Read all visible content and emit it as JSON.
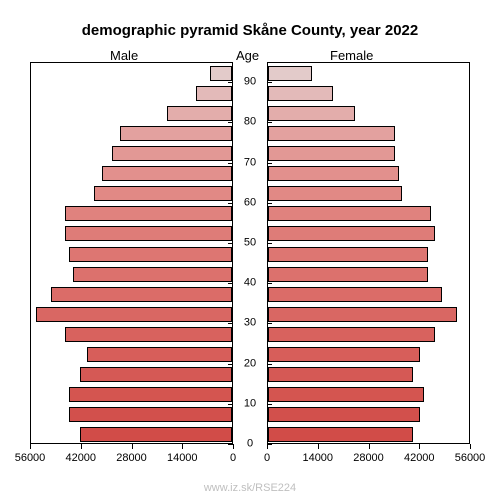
{
  "title": "demographic pyramid Skåne County, year 2022",
  "labels": {
    "male": "Male",
    "age": "Age",
    "female": "Female"
  },
  "watermark": "www.iz.sk/RSE224",
  "chart": {
    "type": "population-pyramid",
    "background_color": "#ffffff",
    "bar_border_color": "#000000",
    "title_fontsize": 15,
    "label_fontsize": 13,
    "tick_fontsize": 11,
    "x_max": 56000,
    "x_ticks": [
      0,
      14000,
      28000,
      42000,
      56000
    ],
    "x_labels_male": [
      "56000",
      "42000",
      "28000",
      "14000",
      "0"
    ],
    "x_labels_female": [
      "0",
      "14000",
      "28000",
      "42000",
      "56000"
    ],
    "y_tick_labels": [
      "0",
      "10",
      "20",
      "30",
      "40",
      "50",
      "60",
      "70",
      "80",
      "90"
    ],
    "bars": [
      {
        "age_low": 0,
        "male": 42000,
        "female": 40000,
        "male_color": "#d14c48",
        "female_color": "#d14c48"
      },
      {
        "age_low": 5,
        "male": 45000,
        "female": 42000,
        "male_color": "#d2504c",
        "female_color": "#d2504c"
      },
      {
        "age_low": 10,
        "male": 45000,
        "female": 43000,
        "male_color": "#d45550",
        "female_color": "#d45550"
      },
      {
        "age_low": 15,
        "male": 42000,
        "female": 40000,
        "male_color": "#d55955",
        "female_color": "#d55955"
      },
      {
        "age_low": 20,
        "male": 40000,
        "female": 42000,
        "male_color": "#d75e5a",
        "female_color": "#d75e5a"
      },
      {
        "age_low": 25,
        "male": 46000,
        "female": 46000,
        "male_color": "#d8625e",
        "female_color": "#d8625e"
      },
      {
        "age_low": 30,
        "male": 54000,
        "female": 52000,
        "male_color": "#d96763",
        "female_color": "#d96763"
      },
      {
        "age_low": 35,
        "male": 50000,
        "female": 48000,
        "male_color": "#db6c68",
        "female_color": "#db6c68"
      },
      {
        "age_low": 40,
        "male": 44000,
        "female": 44000,
        "male_color": "#dc716d",
        "female_color": "#dc716d"
      },
      {
        "age_low": 45,
        "male": 45000,
        "female": 44000,
        "male_color": "#dd7672",
        "female_color": "#dd7672"
      },
      {
        "age_low": 50,
        "male": 46000,
        "female": 46000,
        "male_color": "#de7c78",
        "female_color": "#de7c78"
      },
      {
        "age_low": 55,
        "male": 46000,
        "female": 45000,
        "male_color": "#e0827e",
        "female_color": "#e0827e"
      },
      {
        "age_low": 60,
        "male": 38000,
        "female": 37000,
        "male_color": "#e18985",
        "female_color": "#e18985"
      },
      {
        "age_low": 65,
        "male": 36000,
        "female": 36000,
        "male_color": "#e2908d",
        "female_color": "#e2908d"
      },
      {
        "age_low": 70,
        "male": 33000,
        "female": 35000,
        "male_color": "#e29895",
        "female_color": "#e29895"
      },
      {
        "age_low": 75,
        "male": 31000,
        "female": 35000,
        "male_color": "#e3a19f",
        "female_color": "#e3a19f"
      },
      {
        "age_low": 80,
        "male": 18000,
        "female": 24000,
        "male_color": "#e3adab",
        "female_color": "#e3adab"
      },
      {
        "age_low": 85,
        "male": 10000,
        "female": 18000,
        "male_color": "#e3bab9",
        "female_color": "#e3bab9"
      },
      {
        "age_low": 90,
        "male": 6000,
        "female": 12000,
        "male_color": "#e3cbca",
        "female_color": "#e3cbca"
      }
    ]
  }
}
